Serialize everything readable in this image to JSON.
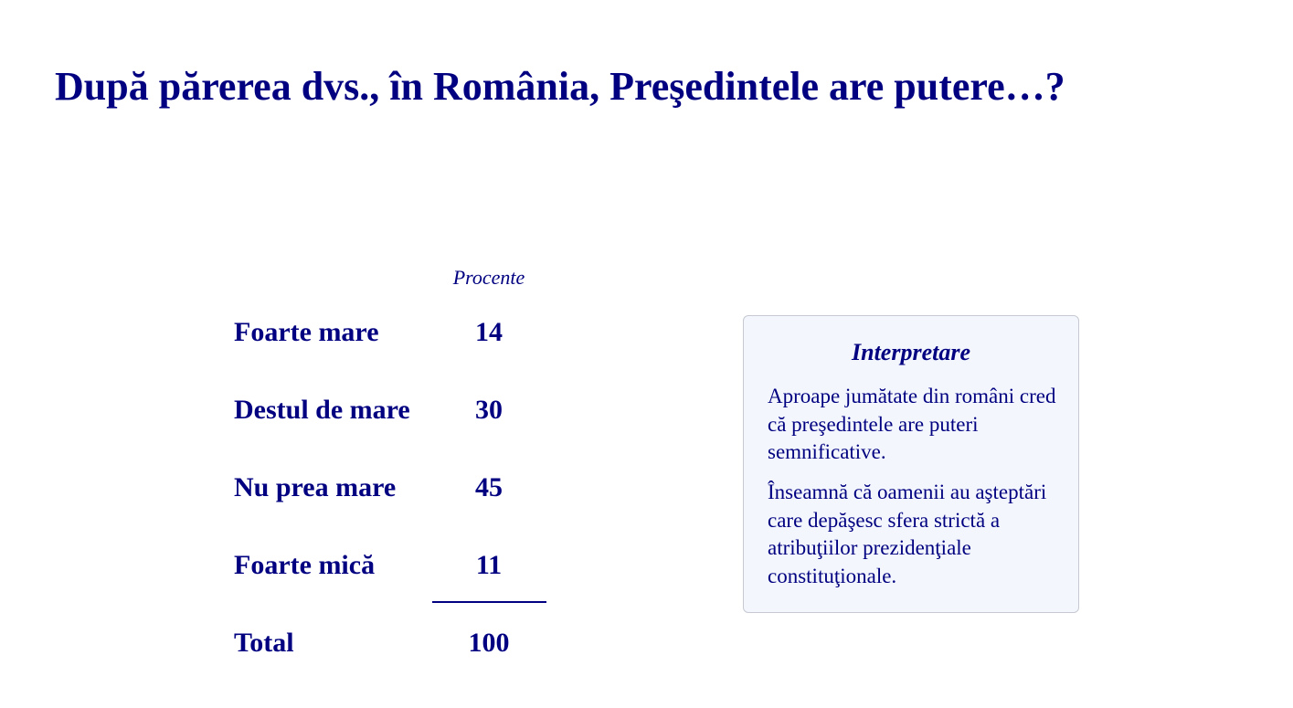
{
  "title": "După părerea dvs., în România, Preşedintele are putere…?",
  "chart_data": {
    "type": "table",
    "column_header": "Procente",
    "categories": [
      "Foarte mare",
      "Destul de mare",
      "Nu prea mare",
      "Foarte mică"
    ],
    "values": [
      14,
      30,
      45,
      11
    ],
    "total_label": "Total",
    "total_value": 100
  },
  "interpretation": {
    "title": "Interpretare",
    "paragraphs": [
      "Aproape jumătate din români cred că preşedintele are puteri semnificative.",
      "Înseamnă că oamenii au aşteptări care depăşesc sfera strictă a atribuţiilor prezidenţiale constituţionale."
    ]
  },
  "colors": {
    "text": "#000080",
    "box_background": "#f3f7fd",
    "box_border": "#c6c9d2"
  }
}
